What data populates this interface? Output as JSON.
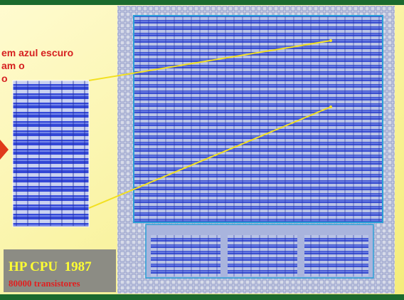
{
  "callout": {
    "lines": [
      "em azul escuro",
      "am o",
      "o"
    ]
  },
  "caption": {
    "title": "HP CPU  1987",
    "subtitle": "80000 transistores"
  }
}
